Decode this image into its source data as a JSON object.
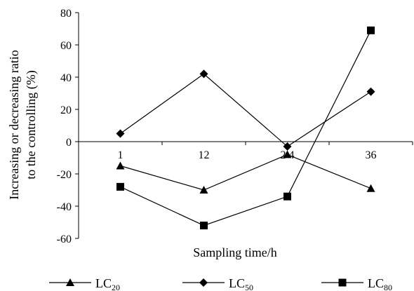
{
  "chart_data": {
    "type": "line",
    "title": "",
    "xlabel": "Sampling time/h",
    "ylabel": "Increasing or decreasing ratio to the controlling (%)",
    "ylabel_lines": [
      "Increasing or decreasing ratio",
      "to the controlling (%)"
    ],
    "categories": [
      "1",
      "12",
      "2  4",
      "36"
    ],
    "ylim": [
      -60,
      80
    ],
    "yticks": [
      -60,
      -40,
      -20,
      0,
      20,
      40,
      60,
      80
    ],
    "ytick_labels": [
      "-60",
      "-40",
      "-20",
      "0",
      "20",
      "40",
      "60",
      "80"
    ],
    "grid": false,
    "legend_position": "bottom",
    "series": [
      {
        "name": "LC",
        "subscript": "20",
        "marker": "triangle",
        "color": "#000000",
        "values": [
          -15,
          -30,
          -8,
          -29
        ]
      },
      {
        "name": "LC",
        "subscript": "50",
        "marker": "diamond",
        "color": "#000000",
        "values": [
          5,
          42,
          -3,
          31
        ]
      },
      {
        "name": "LC",
        "subscript": "80",
        "marker": "square",
        "color": "#000000",
        "values": [
          -28,
          -52,
          -34,
          69
        ]
      }
    ]
  }
}
